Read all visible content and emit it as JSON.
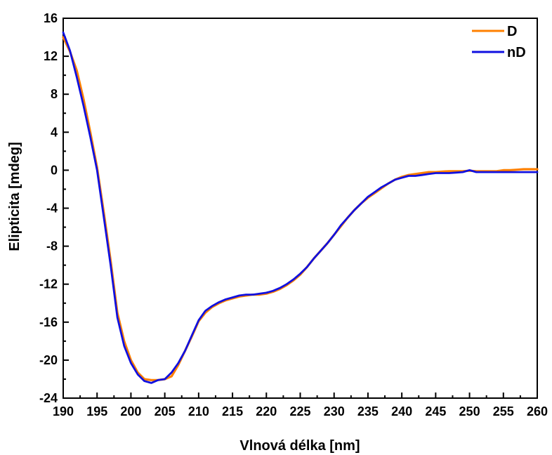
{
  "chart_data": {
    "type": "line",
    "title": "",
    "xlabel": "Vlnová délka [nm]",
    "ylabel": "Elipticita [mdeg]",
    "xlim": [
      190,
      260
    ],
    "ylim": [
      -24,
      16
    ],
    "xticks": [
      190,
      195,
      200,
      205,
      210,
      215,
      220,
      225,
      230,
      235,
      240,
      245,
      250,
      255,
      260
    ],
    "yticks": [
      -24,
      -20,
      -16,
      -12,
      -8,
      -4,
      0,
      4,
      8,
      12,
      16
    ],
    "xtick_labels": [
      "190",
      "195",
      "200",
      "205",
      "210",
      "215",
      "220",
      "225",
      "230",
      "235",
      "240",
      "245",
      "250",
      "255",
      "260"
    ],
    "ytick_labels": [
      "-24",
      "-20",
      "-16",
      "-12",
      "-8",
      "-4",
      "0",
      "4",
      "8",
      "12",
      "16"
    ],
    "grid": false,
    "legend_position": "top-right",
    "series": [
      {
        "name": "D",
        "color": "#FF8000",
        "x": [
          190,
          191,
          192,
          193,
          194,
          195,
          196,
          197,
          198,
          199,
          200,
          201,
          202,
          203,
          204,
          205,
          206,
          207,
          208,
          209,
          210,
          211,
          212,
          213,
          214,
          215,
          216,
          217,
          218,
          219,
          220,
          221,
          222,
          223,
          224,
          225,
          226,
          227,
          228,
          229,
          230,
          231,
          232,
          233,
          234,
          235,
          236,
          237,
          238,
          239,
          240,
          241,
          242,
          243,
          244,
          245,
          246,
          247,
          248,
          249,
          250,
          251,
          252,
          253,
          254,
          255,
          256,
          257,
          258,
          259,
          260
        ],
        "values": [
          14.0,
          12.5,
          10.5,
          7.5,
          4.0,
          0.3,
          -4.5,
          -9.5,
          -15.0,
          -18.0,
          -20.0,
          -21.3,
          -22.0,
          -22.1,
          -22.1,
          -22.0,
          -21.7,
          -20.5,
          -19.0,
          -17.5,
          -15.9,
          -15.0,
          -14.4,
          -14.0,
          -13.7,
          -13.5,
          -13.3,
          -13.2,
          -13.1,
          -13.1,
          -13.0,
          -12.8,
          -12.5,
          -12.1,
          -11.6,
          -11.0,
          -10.2,
          -9.3,
          -8.5,
          -7.7,
          -6.8,
          -5.9,
          -5.0,
          -4.2,
          -3.5,
          -2.9,
          -2.4,
          -1.9,
          -1.4,
          -1.0,
          -0.7,
          -0.5,
          -0.4,
          -0.3,
          -0.2,
          -0.2,
          -0.15,
          -0.1,
          -0.1,
          -0.1,
          -0.05,
          -0.1,
          -0.1,
          -0.1,
          -0.1,
          0.0,
          0.0,
          0.05,
          0.1,
          0.1,
          0.1
        ]
      },
      {
        "name": "nD",
        "color": "#1010E0",
        "x": [
          190,
          191,
          192,
          193,
          194,
          195,
          196,
          197,
          198,
          199,
          200,
          201,
          202,
          203,
          204,
          205,
          206,
          207,
          208,
          209,
          210,
          211,
          212,
          213,
          214,
          215,
          216,
          217,
          218,
          219,
          220,
          221,
          222,
          223,
          224,
          225,
          226,
          227,
          228,
          229,
          230,
          231,
          232,
          233,
          234,
          235,
          236,
          237,
          238,
          239,
          240,
          241,
          242,
          243,
          244,
          245,
          246,
          247,
          248,
          249,
          250,
          251,
          252,
          253,
          254,
          255,
          256,
          257,
          258,
          259,
          260
        ],
        "values": [
          14.5,
          12.6,
          9.8,
          6.8,
          3.5,
          0.0,
          -5.0,
          -10.0,
          -15.5,
          -18.5,
          -20.3,
          -21.5,
          -22.2,
          -22.4,
          -22.1,
          -22.0,
          -21.3,
          -20.3,
          -19.0,
          -17.4,
          -15.8,
          -14.8,
          -14.3,
          -13.9,
          -13.6,
          -13.4,
          -13.2,
          -13.1,
          -13.1,
          -13.0,
          -12.9,
          -12.7,
          -12.4,
          -12.0,
          -11.5,
          -10.9,
          -10.2,
          -9.3,
          -8.5,
          -7.7,
          -6.8,
          -5.8,
          -5.0,
          -4.2,
          -3.5,
          -2.8,
          -2.3,
          -1.8,
          -1.4,
          -1.0,
          -0.8,
          -0.6,
          -0.6,
          -0.5,
          -0.4,
          -0.3,
          -0.3,
          -0.3,
          -0.25,
          -0.2,
          0.0,
          -0.2,
          -0.2,
          -0.2,
          -0.2,
          -0.2,
          -0.2,
          -0.2,
          -0.2,
          -0.2,
          -0.2
        ]
      }
    ]
  }
}
